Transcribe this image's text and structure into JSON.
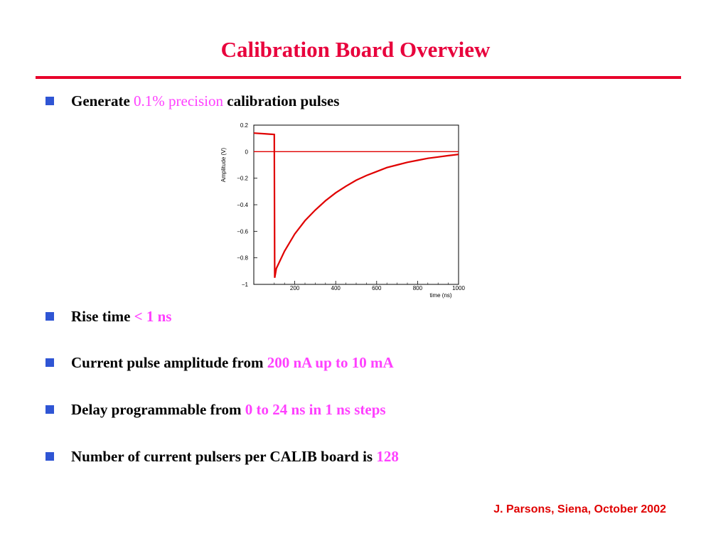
{
  "slide": {
    "title": "Calibration Board Overview",
    "footer": "J. Parsons, Siena, October 2002"
  },
  "bullets": [
    {
      "text": "Generate",
      "highlight": "0.1% precision",
      "suffix": "calibration pulses"
    },
    {
      "text": "Rise time",
      "highlight": "< 1 ns"
    },
    {
      "text": "Current pulse amplitude from",
      "highlight": "200 nA up to 10 mA"
    },
    {
      "text": "Delay programmable from",
      "highlight": "0 to 24 ns in 1 ns steps"
    },
    {
      "text": "Number of current pulsers per CALIB board is",
      "highlight": "128"
    }
  ],
  "colors": {
    "title": "#e8003c",
    "rule": "#e8002a",
    "highlight": "#ff40ff",
    "bullet": "#2f55d4",
    "footer": "#e00000",
    "trace": "#e00000"
  },
  "chart_data": {
    "type": "line",
    "xlabel": "time (ns)",
    "ylabel": "Amplitude (V)",
    "xlim": [
      0,
      1000
    ],
    "ylim": [
      -1,
      0.2
    ],
    "xticks": [
      "200",
      "400",
      "600",
      "800",
      "1000"
    ],
    "yticks": [
      "0.2",
      "0",
      "-0.2",
      "-0.4",
      "-0.6",
      "-0.8",
      "-1"
    ],
    "series": [
      {
        "x": [
          0,
          50,
          100,
          102,
          110,
          150,
          200,
          250,
          300,
          350,
          400,
          450,
          500,
          550,
          600,
          650,
          700,
          750,
          800,
          850,
          900,
          950,
          1000
        ],
        "y": [
          0.14,
          0.135,
          0.13,
          -0.95,
          -0.88,
          -0.75,
          -0.62,
          -0.52,
          -0.44,
          -0.37,
          -0.31,
          -0.26,
          -0.215,
          -0.18,
          -0.15,
          -0.12,
          -0.1,
          -0.08,
          -0.065,
          -0.05,
          -0.04,
          -0.03,
          -0.02
        ]
      }
    ],
    "baseline": 0
  }
}
